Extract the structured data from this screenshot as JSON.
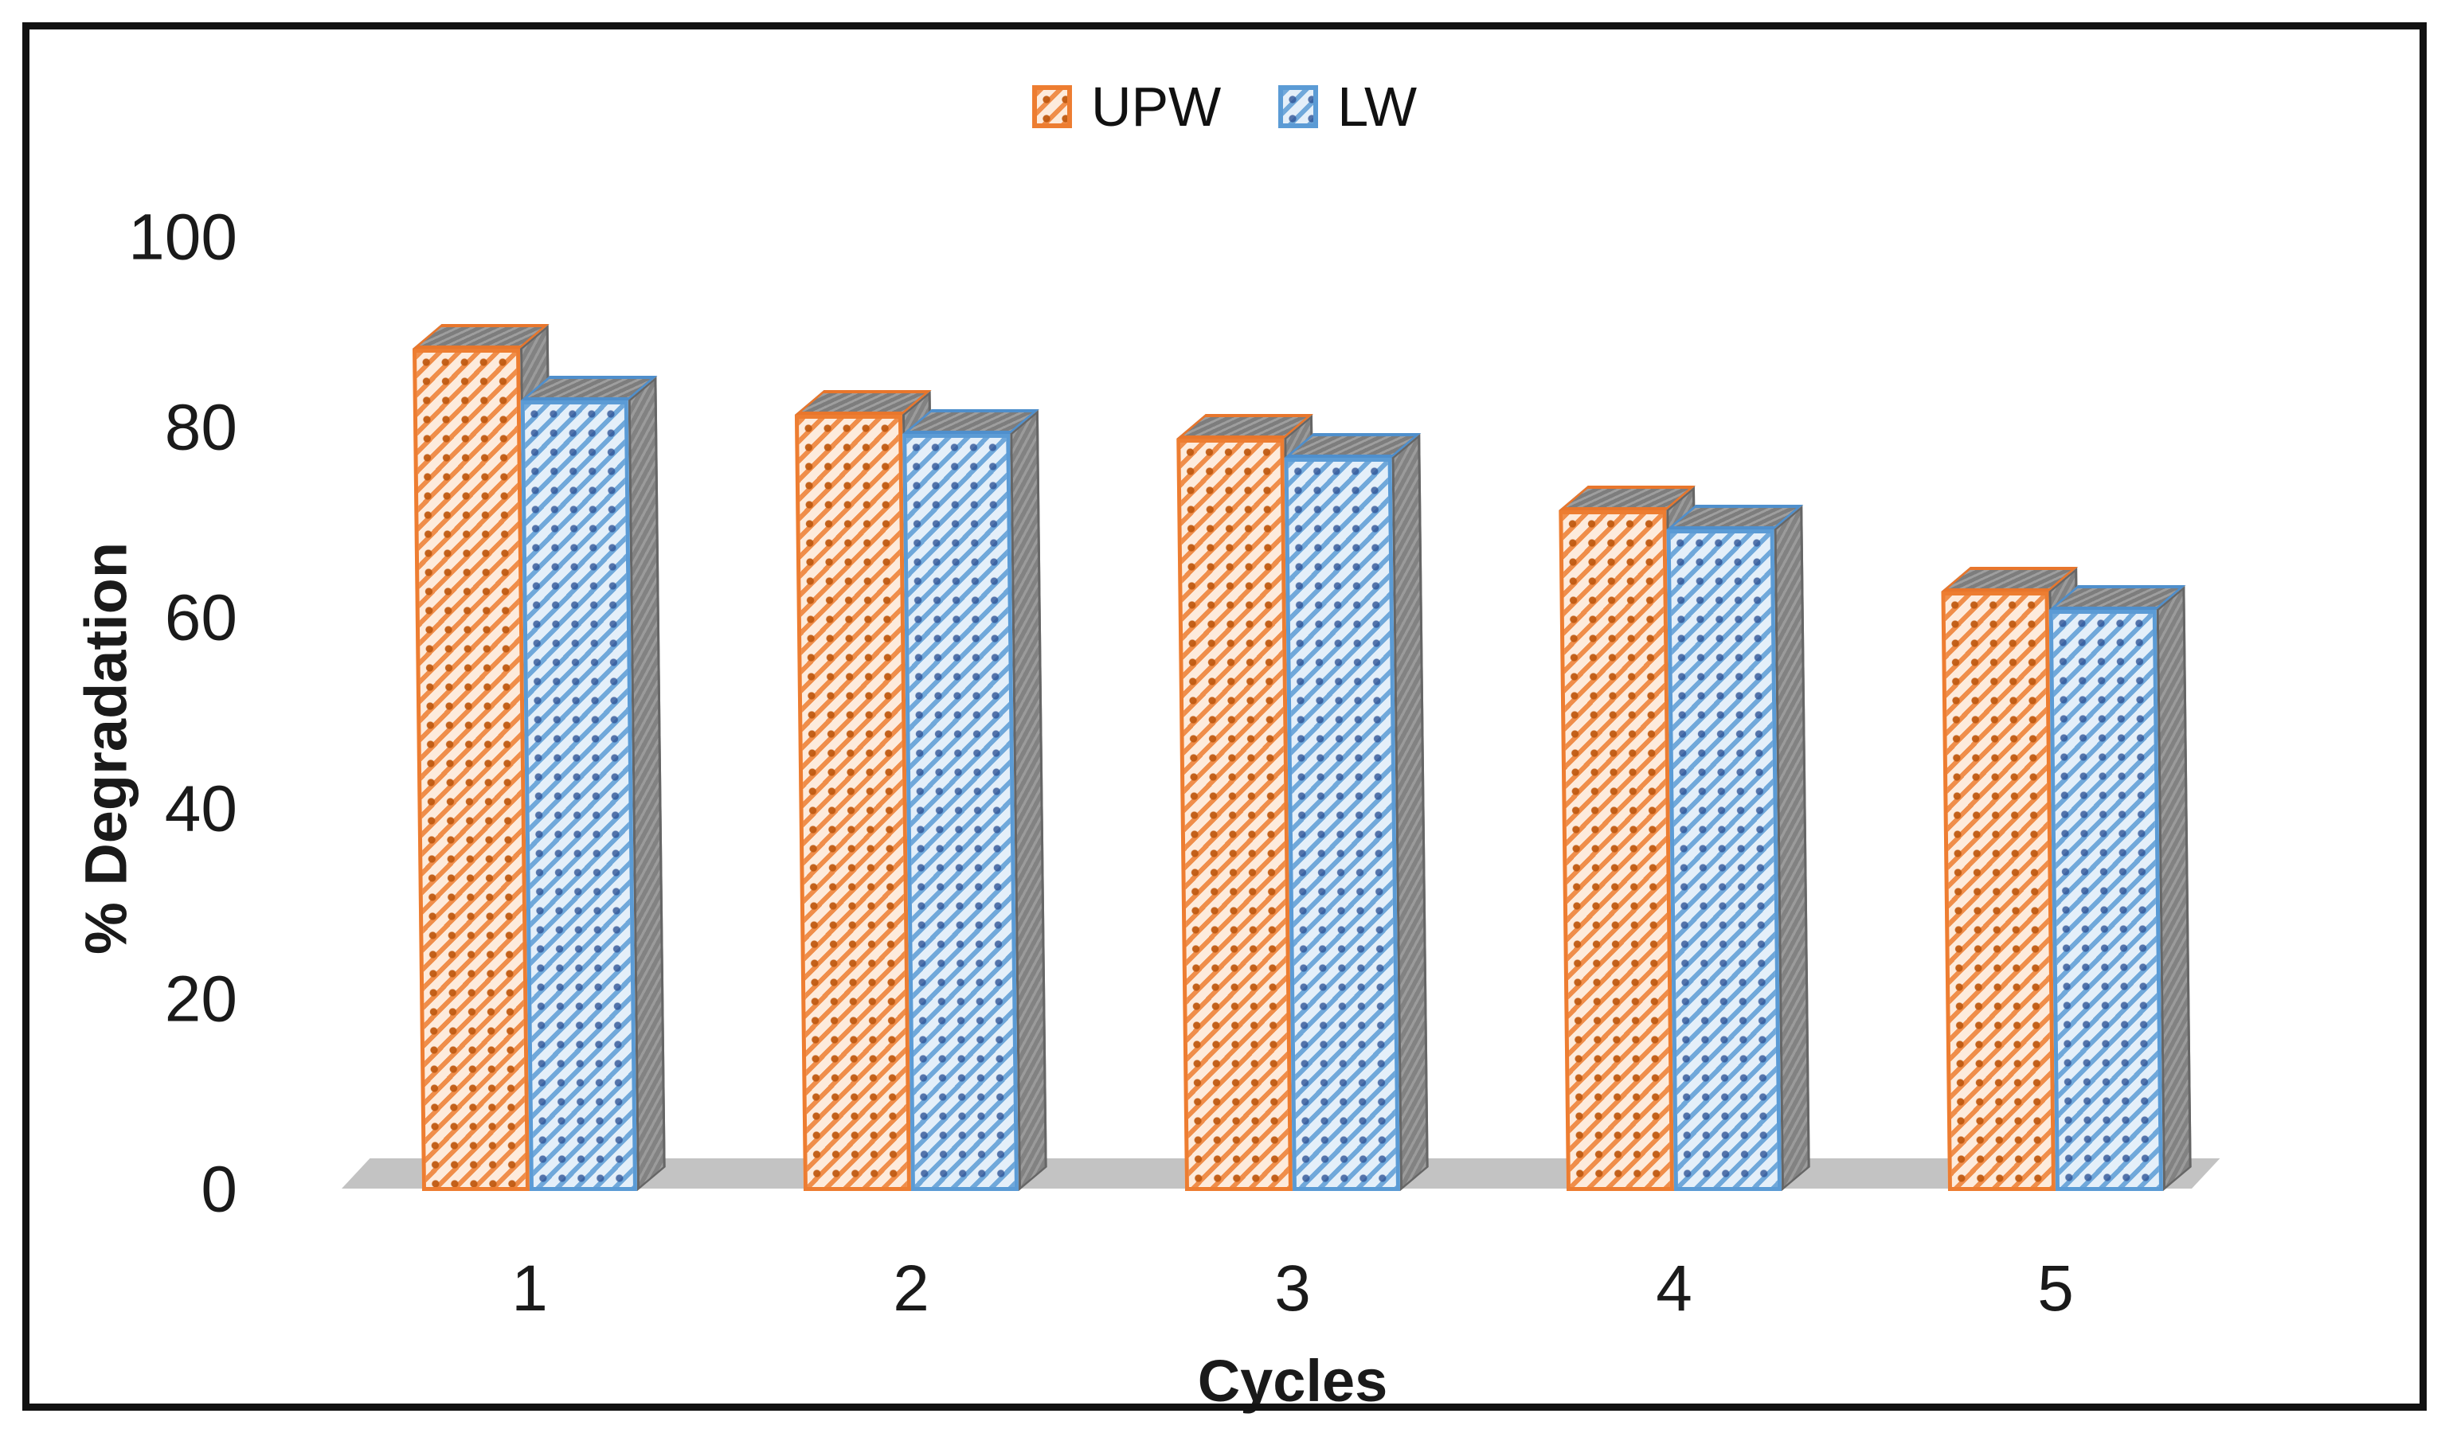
{
  "legend": {
    "items": [
      {
        "label": "UPW",
        "color": "#ED7D31"
      },
      {
        "label": "LW",
        "color": "#5B9BD5"
      }
    ]
  },
  "axes": {
    "y_title": "% Degradation",
    "x_title": "Cycles",
    "y_ticks": [
      "0",
      "20",
      "40",
      "60",
      "80",
      "100"
    ]
  },
  "chart_data": {
    "type": "bar",
    "title": "",
    "categories": [
      "1",
      "2",
      "3",
      "4",
      "5"
    ],
    "series": [
      {
        "name": "UPW",
        "color": "#ED7D31",
        "fill_bg": "#FDEBDC",
        "dot_color": "#C05A11",
        "values": [
          88.5,
          81.5,
          79,
          71.5,
          63
        ]
      },
      {
        "name": "LW",
        "color": "#5B9BD5",
        "fill_bg": "#E4EFF9",
        "dot_color": "#2F5597",
        "values": [
          83,
          79.5,
          77,
          69.5,
          61
        ]
      }
    ],
    "xlabel": "Cycles",
    "ylabel": "% Degradation",
    "ylim": [
      0,
      100
    ],
    "yticks": [
      0,
      20,
      40,
      60,
      80,
      100
    ],
    "legend_position": "top center",
    "grid": false,
    "style": "3d clustered column with diagonal pattern fill, gray 3d floor, black outer frame"
  },
  "colors": {
    "floor": "#C3C3C3",
    "side_face": "#828282",
    "frame": "#121212",
    "text": "#1a1a1a"
  }
}
